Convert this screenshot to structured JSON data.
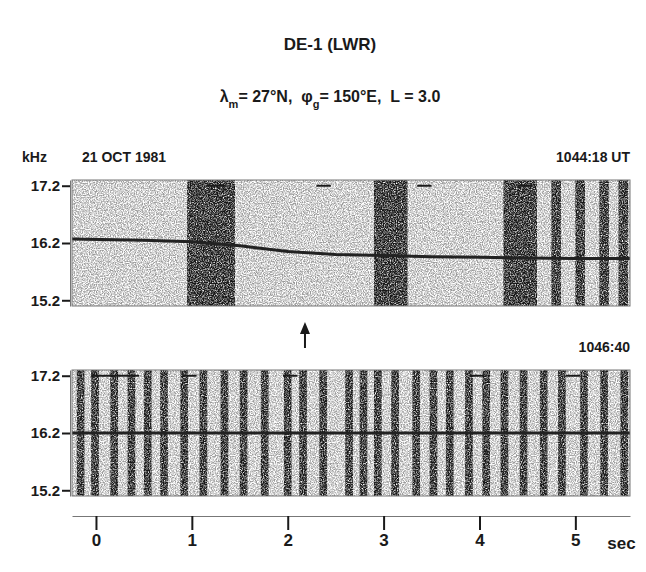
{
  "title": "DE-1 (LWR)",
  "subtitle": [
    {
      "text": "λ"
    },
    {
      "sub": "m"
    },
    {
      "text": "= 27°N,  φ"
    },
    {
      "sub": "g"
    },
    {
      "text": "= 150°E,  L = 3.0"
    }
  ],
  "date": "21 OCT 1981",
  "y_label": "kHz",
  "x_label": "sec",
  "chart_data": [
    {
      "type": "spectrogram",
      "title": "1044:18 UT",
      "xlim": [
        -0.25,
        5.57
      ],
      "ylim": [
        15.1,
        17.3
      ],
      "yticks": [
        15.2,
        16.2,
        17.2
      ],
      "tick_labels": "y",
      "series": [
        {
          "color": "#222222",
          "x": [
            -0.25,
            0.5,
            1.0,
            1.5,
            2.0,
            2.5,
            3.0,
            3.5,
            4.0,
            4.5,
            5.0,
            5.57
          ],
          "values": [
            16.27,
            16.25,
            16.22,
            16.15,
            16.05,
            16.0,
            15.98,
            15.96,
            15.95,
            15.94,
            15.93,
            15.93
          ]
        }
      ],
      "bursts": [
        [
          0.95,
          1.45
        ],
        [
          2.9,
          3.25
        ],
        [
          4.25,
          4.6
        ],
        [
          4.75,
          4.85
        ],
        [
          5.0,
          5.1
        ],
        [
          5.25,
          5.35
        ],
        [
          5.45,
          5.55
        ]
      ],
      "time_marks": {
        "y": 17.2,
        "spans": [
          [
            1.15,
            1.35
          ],
          [
            2.3,
            2.45
          ],
          [
            3.35,
            3.5
          ],
          [
            4.4,
            4.55
          ]
        ]
      },
      "arrow": 2.18
    },
    {
      "type": "spectrogram",
      "title": "1046:40",
      "xlim": [
        -0.25,
        5.57
      ],
      "ylim": [
        15.1,
        17.3
      ],
      "xticks": [
        0,
        1,
        2,
        3,
        4,
        5
      ],
      "yticks": [
        15.2,
        16.2,
        17.2
      ],
      "series": [
        {
          "color": "#222222",
          "x": [
            -0.25,
            1.0,
            2.0,
            3.0,
            4.0,
            5.0,
            5.57
          ],
          "values": [
            16.2,
            16.2,
            16.2,
            16.2,
            16.2,
            16.2,
            16.2
          ]
        }
      ],
      "bursts": [
        [
          -0.2,
          -0.12
        ],
        [
          -0.05,
          0.03
        ],
        [
          0.15,
          0.23
        ],
        [
          0.33,
          0.41
        ],
        [
          0.5,
          0.58
        ],
        [
          0.67,
          0.75
        ],
        [
          0.88,
          0.96
        ],
        [
          1.08,
          1.16
        ],
        [
          1.3,
          1.38
        ],
        [
          1.5,
          1.58
        ],
        [
          1.72,
          1.8
        ],
        [
          1.96,
          2.04
        ],
        [
          2.12,
          2.2
        ],
        [
          2.33,
          2.41
        ],
        [
          2.6,
          2.68
        ],
        [
          2.75,
          2.83
        ],
        [
          2.9,
          2.98
        ],
        [
          3.08,
          3.16
        ],
        [
          3.3,
          3.38
        ],
        [
          3.48,
          3.56
        ],
        [
          3.65,
          3.73
        ],
        [
          3.85,
          3.93
        ],
        [
          4.03,
          4.11
        ],
        [
          4.22,
          4.3
        ],
        [
          4.42,
          4.5
        ],
        [
          4.63,
          4.71
        ],
        [
          4.82,
          4.9
        ],
        [
          5.05,
          5.13
        ],
        [
          5.26,
          5.34
        ],
        [
          5.47,
          5.55
        ]
      ],
      "time_marks": {
        "y": 17.2,
        "spans": [
          [
            -0.05,
            0.45
          ],
          [
            0.9,
            1.05
          ],
          [
            1.95,
            2.1
          ],
          [
            3.9,
            4.05
          ],
          [
            4.9,
            5.05
          ]
        ]
      }
    }
  ]
}
